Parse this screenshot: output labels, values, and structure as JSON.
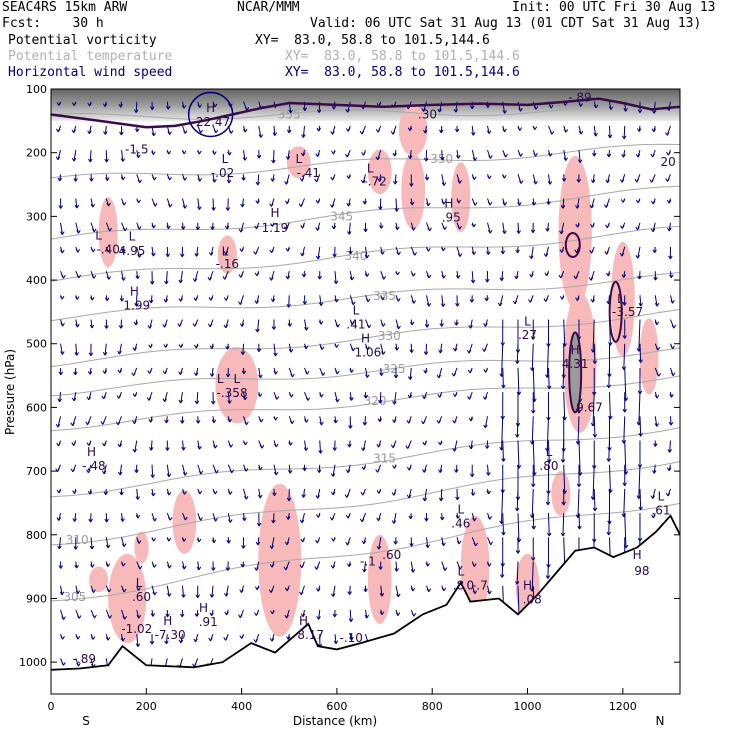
{
  "header": {
    "model": "SEAC4RS 15km ARW",
    "org": "NCAR/MMM",
    "init": "Init: 00 UTC Fri 30 Aug 13",
    "fcst": "Fcst:    30 h",
    "valid": "Valid: 06 UTC Sat 31 Aug 13 (01 CDT Sat 31 Aug 13)",
    "fields": [
      {
        "name": "Potential vorticity",
        "xy": "XY=  83.0, 58.8 to 101.5,144.6"
      },
      {
        "name": "Potential temperature",
        "xy": "XY=  83.0, 58.8 to 101.5,144.6"
      },
      {
        "name": "Horizontal wind speed",
        "xy": "XY=  83.0, 58.8 to 101.5,144.6"
      }
    ]
  },
  "colors": {
    "pv_fill": "#f7b9b9",
    "theta": "#a8a8a8",
    "pv_contour": "#3a0a4a",
    "wind": "#00007a",
    "terrain": "#000000",
    "strato_dark": "#505050"
  },
  "chart_data": {
    "type": "cross-section",
    "title": "Potential vorticity, potential temperature, horizontal wind speed",
    "xlabel": "Distance (km)",
    "ylabel": "Pressure (hPa)",
    "xlim": [
      0,
      1320
    ],
    "ylim": [
      1050,
      100
    ],
    "x_ticks": [
      "0",
      "200",
      "400",
      "600",
      "800",
      "1000",
      "1200"
    ],
    "y_ticks": [
      "100",
      "200",
      "300",
      "400",
      "500",
      "600",
      "700",
      "800",
      "900",
      "1000"
    ],
    "end_labels": {
      "left": "S",
      "right": "N"
    },
    "theta_isentropes": [
      {
        "label": "305",
        "x": 50,
        "p": 898,
        "slope": -0.12
      },
      {
        "label": "310",
        "x": 55,
        "p": 808,
        "slope": -0.1
      },
      {
        "label": "315",
        "x": 700,
        "p": 680,
        "slope": -0.08
      },
      {
        "label": "320",
        "x": 680,
        "p": 590,
        "slope": -0.06
      },
      {
        "label": "325",
        "x": 720,
        "p": 540,
        "slope": -0.05
      },
      {
        "label": "330",
        "x": 710,
        "p": 488,
        "slope": -0.06
      },
      {
        "label": "335",
        "x": 700,
        "p": 425,
        "slope": -0.05
      },
      {
        "label": "340",
        "x": 640,
        "p": 362,
        "slope": -0.06
      },
      {
        "label": "345",
        "x": 610,
        "p": 300,
        "slope": -0.06
      },
      {
        "label": "350",
        "x": 820,
        "p": 210,
        "slope": -0.04
      },
      {
        "label": "355",
        "x": 500,
        "p": 140,
        "slope": -0.01
      }
    ],
    "pv_labels": [
      {
        "text": "H",
        "x": 335,
        "p": 130
      },
      {
        "text": "22.47",
        "x": 340,
        "p": 152
      },
      {
        "text": "L",
        "x": 365,
        "p": 210
      },
      {
        "text": "-.02",
        "x": 360,
        "p": 232
      },
      {
        "text": "-1.5",
        "x": 180,
        "p": 195
      },
      {
        "text": ".30",
        "x": 790,
        "p": 140
      },
      {
        "text": "L",
        "x": 520,
        "p": 210
      },
      {
        "text": "-.41",
        "x": 540,
        "p": 232
      },
      {
        "text": "L",
        "x": 670,
        "p": 225
      },
      {
        "text": "-.72",
        "x": 680,
        "p": 245
      },
      {
        "text": "H",
        "x": 835,
        "p": 280
      },
      {
        "text": ".95",
        "x": 840,
        "p": 302
      },
      {
        "text": "H",
        "x": 470,
        "p": 295
      },
      {
        "text": "1.19",
        "x": 470,
        "p": 318
      },
      {
        "text": "L",
        "x": 100,
        "p": 330
      },
      {
        "text": "-.40",
        "x": 120,
        "p": 352
      },
      {
        "text": "L",
        "x": 170,
        "p": 332
      },
      {
        "text": "4.95",
        "x": 170,
        "p": 354
      },
      {
        "text": "L",
        "x": 365,
        "p": 355
      },
      {
        "text": "-.16",
        "x": 370,
        "p": 375
      },
      {
        "text": "H",
        "x": 175,
        "p": 418
      },
      {
        "text": "1.99",
        "x": 180,
        "p": 440
      },
      {
        "text": "L",
        "x": 640,
        "p": 448
      },
      {
        "text": ".41",
        "x": 640,
        "p": 470
      },
      {
        "text": "H",
        "x": 660,
        "p": 492
      },
      {
        "text": "1.06",
        "x": 665,
        "p": 514
      },
      {
        "text": "L",
        "x": 1000,
        "p": 465
      },
      {
        "text": ".27",
        "x": 1000,
        "p": 486
      },
      {
        "text": "L",
        "x": 1195,
        "p": 430
      },
      {
        "text": "-3.57",
        "x": 1210,
        "p": 450
      },
      {
        "text": "H",
        "x": 1100,
        "p": 510
      },
      {
        "text": "4.31",
        "x": 1100,
        "p": 532
      },
      {
        "text": "L",
        "x": 355,
        "p": 555
      },
      {
        "text": "L",
        "x": 390,
        "p": 555
      },
      {
        "text": "-.358",
        "x": 380,
        "p": 577
      },
      {
        "text": "9.67",
        "x": 1130,
        "p": 600
      },
      {
        "text": "H",
        "x": 85,
        "p": 670
      },
      {
        "text": "-.48",
        "x": 90,
        "p": 692
      },
      {
        "text": "L",
        "x": 1045,
        "p": 670
      },
      {
        "text": ".80",
        "x": 1045,
        "p": 692
      },
      {
        "text": "L",
        "x": 860,
        "p": 760
      },
      {
        "text": ".46",
        "x": 860,
        "p": 782
      },
      {
        "text": "L",
        "x": 1280,
        "p": 740
      },
      {
        "text": ".61",
        "x": 1280,
        "p": 762
      },
      {
        "text": "-.1",
        "x": 665,
        "p": 842
      },
      {
        "text": ".60",
        "x": 715,
        "p": 832
      },
      {
        "text": "L",
        "x": 860,
        "p": 858
      },
      {
        "text": ".8",
        "x": 855,
        "p": 880
      },
      {
        "text": "0",
        "x": 880,
        "p": 880
      },
      {
        "text": "-.7",
        "x": 900,
        "p": 880
      },
      {
        "text": "H",
        "x": 1000,
        "p": 880
      },
      {
        "text": ".08",
        "x": 1010,
        "p": 902
      },
      {
        "text": "L",
        "x": 185,
        "p": 876
      },
      {
        "text": ".60",
        "x": 190,
        "p": 898
      },
      {
        "text": "H",
        "x": 245,
        "p": 935
      },
      {
        "text": "-7.30",
        "x": 250,
        "p": 957
      },
      {
        "text": "H",
        "x": 320,
        "p": 915
      },
      {
        "text": ".91",
        "x": 330,
        "p": 937
      },
      {
        "text": "-1.02",
        "x": 180,
        "p": 948
      },
      {
        "text": "H",
        "x": 530,
        "p": 935
      },
      {
        "text": "8.17",
        "x": 545,
        "p": 957
      },
      {
        "text": "-.10",
        "x": 630,
        "p": 962
      },
      {
        "text": "-.89",
        "x": 1110,
        "p": 113
      },
      {
        "text": "20",
        "x": 1295,
        "p": 215
      },
      {
        "text": "-.89",
        "x": 70,
        "p": 995
      },
      {
        "text": "98",
        "x": 1240,
        "p": 857
      },
      {
        "text": "H",
        "x": 1230,
        "p": 832
      }
    ],
    "pv_fill_regions": [
      {
        "x": 120,
        "p": 325,
        "rx": 20,
        "rp": 55
      },
      {
        "x": 390,
        "p": 565,
        "rx": 45,
        "rp": 60
      },
      {
        "x": 370,
        "p": 360,
        "rx": 20,
        "rp": 30
      },
      {
        "x": 520,
        "p": 215,
        "rx": 25,
        "rp": 25
      },
      {
        "x": 690,
        "p": 230,
        "rx": 25,
        "rp": 35
      },
      {
        "x": 760,
        "p": 165,
        "rx": 30,
        "rp": 40
      },
      {
        "x": 760,
        "p": 260,
        "rx": 25,
        "rp": 60
      },
      {
        "x": 860,
        "p": 270,
        "rx": 20,
        "rp": 55
      },
      {
        "x": 1100,
        "p": 325,
        "rx": 35,
        "rp": 120
      },
      {
        "x": 1110,
        "p": 530,
        "rx": 35,
        "rp": 110
      },
      {
        "x": 1200,
        "p": 430,
        "rx": 25,
        "rp": 90
      },
      {
        "x": 1255,
        "p": 520,
        "rx": 20,
        "rp": 60
      },
      {
        "x": 280,
        "p": 780,
        "rx": 25,
        "rp": 50
      },
      {
        "x": 190,
        "p": 820,
        "rx": 15,
        "rp": 25
      },
      {
        "x": 480,
        "p": 840,
        "rx": 45,
        "rp": 120
      },
      {
        "x": 690,
        "p": 870,
        "rx": 25,
        "rp": 70
      },
      {
        "x": 890,
        "p": 850,
        "rx": 30,
        "rp": 80
      },
      {
        "x": 1000,
        "p": 880,
        "rx": 25,
        "rp": 50
      },
      {
        "x": 160,
        "p": 900,
        "rx": 40,
        "rp": 70
      },
      {
        "x": 100,
        "p": 870,
        "rx": 20,
        "rp": 20
      },
      {
        "x": 1070,
        "p": 735,
        "rx": 20,
        "rp": 35
      }
    ],
    "terrain": [
      [
        0,
        1012
      ],
      [
        60,
        1010
      ],
      [
        120,
        1005
      ],
      [
        150,
        975
      ],
      [
        200,
        1005
      ],
      [
        300,
        1008
      ],
      [
        360,
        1000
      ],
      [
        420,
        970
      ],
      [
        470,
        985
      ],
      [
        540,
        940
      ],
      [
        560,
        975
      ],
      [
        600,
        980
      ],
      [
        650,
        970
      ],
      [
        720,
        955
      ],
      [
        780,
        925
      ],
      [
        830,
        910
      ],
      [
        860,
        875
      ],
      [
        880,
        905
      ],
      [
        940,
        900
      ],
      [
        980,
        925
      ],
      [
        1020,
        895
      ],
      [
        1060,
        860
      ],
      [
        1100,
        825
      ],
      [
        1140,
        820
      ],
      [
        1180,
        835
      ],
      [
        1230,
        820
      ],
      [
        1270,
        795
      ],
      [
        1300,
        770
      ],
      [
        1320,
        800
      ]
    ],
    "tropopause": [
      [
        0,
        140
      ],
      [
        100,
        150
      ],
      [
        200,
        160
      ],
      [
        260,
        158
      ],
      [
        320,
        150
      ],
      [
        380,
        140
      ],
      [
        440,
        130
      ],
      [
        500,
        122
      ],
      [
        600,
        125
      ],
      [
        700,
        128
      ],
      [
        800,
        125
      ],
      [
        900,
        123
      ],
      [
        1000,
        125
      ],
      [
        1080,
        120
      ],
      [
        1150,
        115
      ],
      [
        1200,
        122
      ],
      [
        1260,
        132
      ],
      [
        1320,
        128
      ]
    ],
    "wind_field": "vector arrows (tangential wind), strongest vertical arrows near 950-1250 km"
  }
}
